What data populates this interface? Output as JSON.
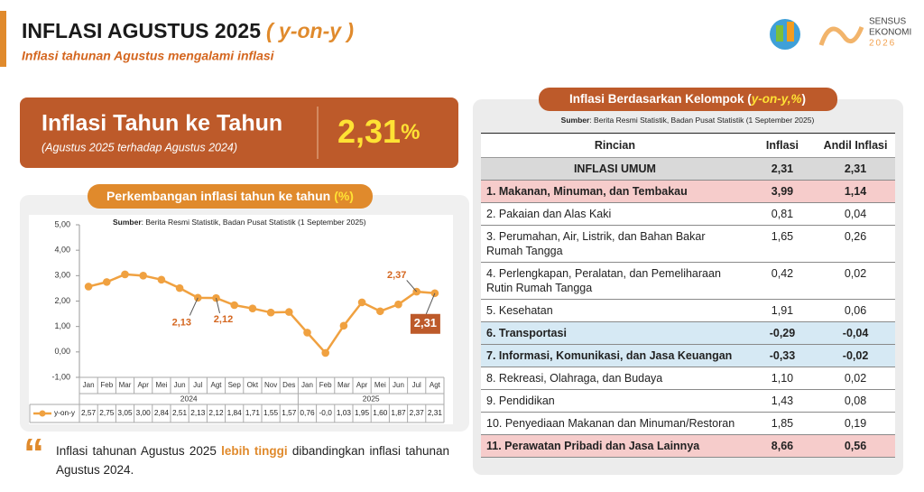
{
  "header": {
    "title": "INFLASI AGUSTUS 2025",
    "title_suffix": "( y-on-y )",
    "subtitle": "Inflasi tahunan Agustus mengalami inflasi",
    "logo_lines": [
      "SENSUS",
      "EKONOMI",
      "2026"
    ]
  },
  "kpi": {
    "title": "Inflasi Tahun ke Tahun",
    "subtitle": "(Agustus 2025 terhadap Agustus 2024)",
    "value": "2,31",
    "unit": "%"
  },
  "chart_data": {
    "type": "line",
    "title": "Perkembangan inflasi tahun ke tahun",
    "title_unit": "(%)",
    "source_label": "Sumber",
    "source_text": ": Berita Resmi Statistik, Badan Pusat Statistik (1 September 2025)",
    "categories": [
      "Jan",
      "Feb",
      "Mar",
      "Apr",
      "Mei",
      "Jun",
      "Jul",
      "Agt",
      "Sep",
      "Okt",
      "Nov",
      "Des",
      "Jan",
      "Feb",
      "Mar",
      "Apr",
      "Mei",
      "Jun",
      "Jul",
      "Agt"
    ],
    "x_groups": [
      "2024",
      "2025"
    ],
    "series": [
      {
        "name": "y-on-y",
        "color": "#f0a140",
        "values": [
          2.57,
          2.75,
          3.05,
          3.0,
          2.84,
          2.51,
          2.13,
          2.12,
          1.84,
          1.71,
          1.55,
          1.57,
          0.76,
          -0.04,
          1.03,
          1.95,
          1.6,
          1.87,
          2.37,
          2.31
        ],
        "value_labels": [
          "2,57",
          "2,75",
          "3,05",
          "3,00",
          "2,84",
          "2,51",
          "2,13",
          "2,12",
          "1,84",
          "1,71",
          "1,55",
          "1,57",
          "0,76",
          "-0,0",
          "1,03",
          "1,95",
          "1,60",
          "1,87",
          "2,37",
          "2,31"
        ]
      }
    ],
    "ylim": [
      -1,
      5
    ],
    "yticks": [
      {
        "value": 5,
        "label": "5,00"
      },
      {
        "value": 4,
        "label": "4,00"
      },
      {
        "value": 3,
        "label": "3,00"
      },
      {
        "value": 2,
        "label": "2,00"
      },
      {
        "value": 1,
        "label": "1,00"
      },
      {
        "value": 0,
        "label": "0,00"
      },
      {
        "value": -1,
        "label": "-1,00"
      }
    ],
    "grid": false
  },
  "table": {
    "title": "Inflasi Berdasarkan Kelompok (",
    "title_unit": "y-on-y,%",
    "title_end": ")",
    "source_label": "Sumber",
    "source_text": ": Berita Resmi Statistik, Badan Pusat Statistik (1 September 2025)",
    "columns": [
      "Rincian",
      "Inflasi",
      "Andil Inflasi"
    ],
    "rows": [
      {
        "cells": [
          "INFLASI UMUM",
          "2,31",
          "2,31"
        ],
        "color": "#d9d9d9"
      },
      {
        "cells": [
          "1. Makanan, Minuman, dan Tembakau",
          "3,99",
          "1,14"
        ],
        "color": "#f6cccb"
      },
      {
        "cells": [
          "2. Pakaian dan Alas Kaki",
          "0,81",
          "0,04"
        ]
      },
      {
        "cells": [
          "3. Perumahan, Air, Listrik, dan Bahan Bakar Rumah Tangga",
          "1,65",
          "0,26"
        ]
      },
      {
        "cells": [
          "4. Perlengkapan, Peralatan, dan Pemeliharaan Rutin Rumah Tangga",
          "0,42",
          "0,02"
        ]
      },
      {
        "cells": [
          "5. Kesehatan",
          "1,91",
          "0,06"
        ]
      },
      {
        "cells": [
          "6. Transportasi",
          "-0,29",
          "-0,04"
        ],
        "color": "#d6e9f4"
      },
      {
        "cells": [
          "7. Informasi, Komunikasi, dan Jasa Keuangan",
          "-0,33",
          "-0,02"
        ],
        "color": "#d6e9f4"
      },
      {
        "cells": [
          "8. Rekreasi, Olahraga, dan Budaya",
          "1,10",
          "0,02"
        ]
      },
      {
        "cells": [
          "9. Pendidikan",
          "1,43",
          "0,08"
        ]
      },
      {
        "cells": [
          "10. Penyediaan Makanan dan Minuman/Restoran",
          "1,85",
          "0,19"
        ]
      },
      {
        "cells": [
          "11. Perawatan Pribadi dan Jasa Lainnya",
          "8,66",
          "0,56"
        ],
        "color": "#f6cccb"
      }
    ]
  },
  "footer": {
    "before": "Inflasi tahunan Agustus 2025 ",
    "highlight": "lebih tinggi",
    "after": " dibandingkan inflasi tahunan Agustus 2024."
  }
}
